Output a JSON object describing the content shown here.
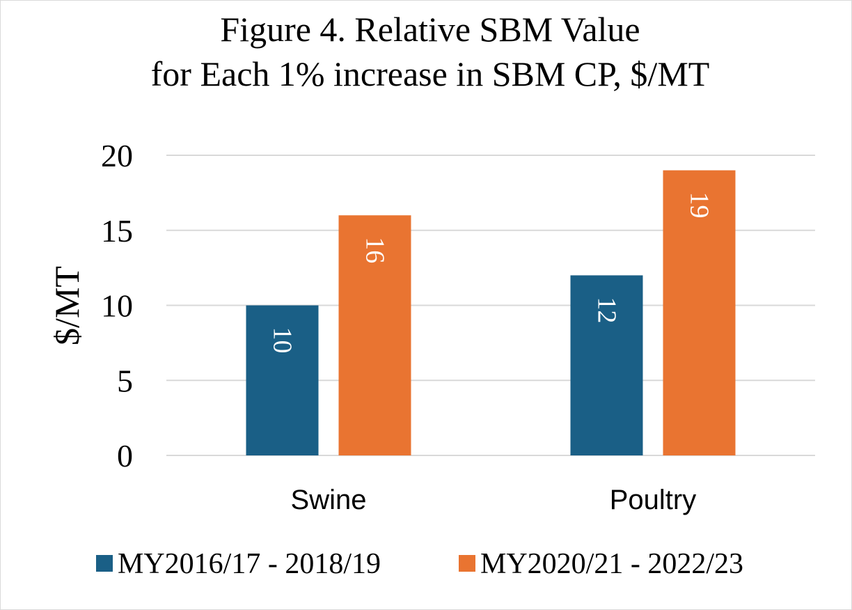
{
  "chart_data": {
    "type": "bar",
    "title_lines": [
      "Figure 4. Relative SBM Value",
      "for Each 1% increase in SBM CP, $/MT"
    ],
    "ylabel": "$/MT",
    "xlabel": "",
    "categories": [
      "Swine",
      "Poultry"
    ],
    "series": [
      {
        "name": "MY2016/17 - 2018/19",
        "values": [
          10,
          12
        ],
        "color": "#1a5f86"
      },
      {
        "name": "MY2020/21 - 2022/23",
        "values": [
          16,
          19
        ],
        "color": "#e97431"
      }
    ],
    "ylim": [
      0,
      20
    ],
    "yticks": [
      0,
      5,
      10,
      15,
      20
    ],
    "grid": true,
    "legend_position": "bottom",
    "data_labels": true,
    "data_label_orientation": "rotated-vertical"
  }
}
